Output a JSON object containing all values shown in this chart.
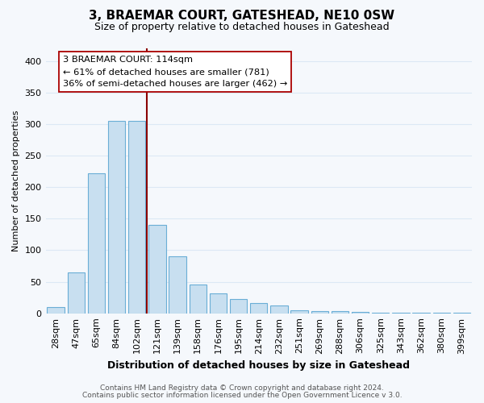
{
  "title": "3, BRAEMAR COURT, GATESHEAD, NE10 0SW",
  "subtitle": "Size of property relative to detached houses in Gateshead",
  "xlabel": "Distribution of detached houses by size in Gateshead",
  "ylabel": "Number of detached properties",
  "bar_color": "#c8dff0",
  "bar_edge_color": "#6aaed6",
  "categories": [
    "28sqm",
    "47sqm",
    "65sqm",
    "84sqm",
    "102sqm",
    "121sqm",
    "139sqm",
    "158sqm",
    "176sqm",
    "195sqm",
    "214sqm",
    "232sqm",
    "251sqm",
    "269sqm",
    "288sqm",
    "306sqm",
    "325sqm",
    "343sqm",
    "362sqm",
    "380sqm",
    "399sqm"
  ],
  "values": [
    10,
    65,
    222,
    305,
    305,
    140,
    90,
    46,
    31,
    23,
    16,
    13,
    5,
    4,
    3,
    2,
    1,
    1,
    1,
    1,
    1
  ],
  "ylim": [
    0,
    420
  ],
  "yticks": [
    0,
    50,
    100,
    150,
    200,
    250,
    300,
    350,
    400
  ],
  "marker_index": 5,
  "marker_label": "3 BRAEMAR COURT: 114sqm",
  "annotation_line1": "← 61% of detached houses are smaller (781)",
  "annotation_line2": "36% of semi-detached houses are larger (462) →",
  "marker_color": "#8b0000",
  "footer1": "Contains HM Land Registry data © Crown copyright and database right 2024.",
  "footer2": "Contains public sector information licensed under the Open Government Licence v 3.0.",
  "bg_color": "#f5f8fc",
  "grid_color": "#dce8f5",
  "annotation_box_color": "#ffffff",
  "annotation_box_edge": "#aa0000",
  "title_fontsize": 11,
  "subtitle_fontsize": 9,
  "xlabel_fontsize": 9,
  "ylabel_fontsize": 8,
  "tick_fontsize": 8,
  "footer_fontsize": 6.5
}
